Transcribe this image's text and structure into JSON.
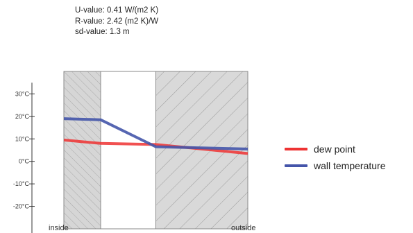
{
  "info": {
    "u_value": "U-value: 0.41 W/(m2 K)",
    "r_value": "R-value: 2.42 (m2 K)/W",
    "sd_value": "sd-value: 1.3 m"
  },
  "chart_data": {
    "type": "line",
    "title": "",
    "xlabel": "",
    "ylabel": "",
    "ylim": [
      -30,
      40
    ],
    "yticks": [
      30,
      20,
      10,
      0,
      -10,
      -20
    ],
    "ytick_labels": [
      "30°C",
      "20°C",
      "10°C",
      "0°C",
      "-10°C",
      "-20°C"
    ],
    "x_labels": {
      "inside": "inside",
      "outside": "outside"
    },
    "grid": false,
    "legend": "right",
    "layers": [
      {
        "kind": "hatched-light",
        "from": 0,
        "to": 0.2
      },
      {
        "kind": "blank",
        "from": 0.2,
        "to": 0.5
      },
      {
        "kind": "hatched-dark",
        "from": 0.5,
        "to": 1.0
      }
    ],
    "x": [
      0,
      0.2,
      0.5,
      1.0
    ],
    "series": [
      {
        "name": "dew point",
        "color": "#ee3333",
        "values": [
          9.5,
          8.0,
          7.5,
          3.5
        ]
      },
      {
        "name": "wall temperature",
        "color": "#4455aa",
        "values": [
          19.0,
          18.5,
          6.5,
          5.5
        ]
      }
    ]
  }
}
